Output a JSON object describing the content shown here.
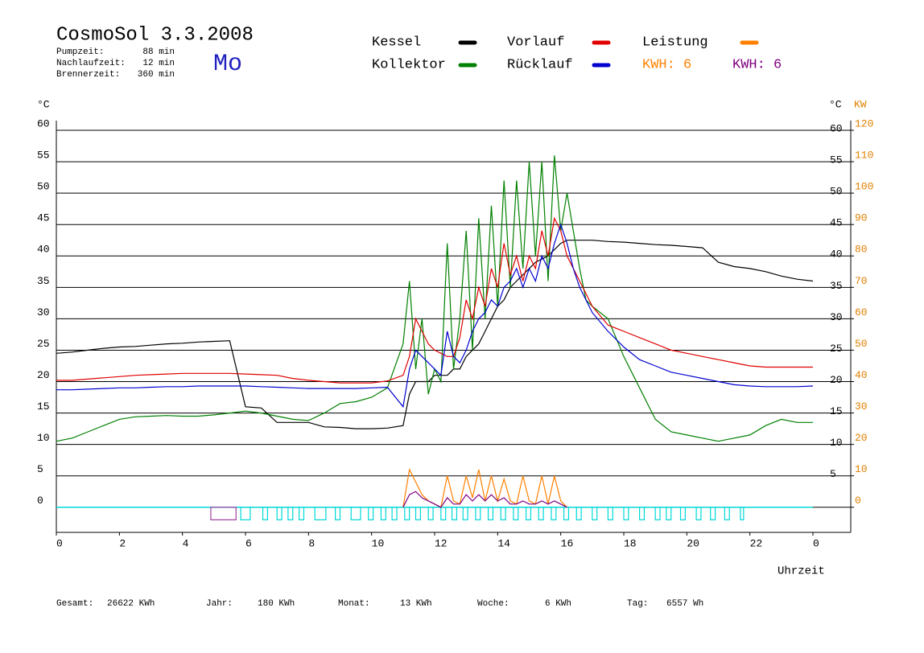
{
  "chart_data": {
    "type": "line",
    "title": "CosmoSol 3.3.2008",
    "weekday": "Mo",
    "stats": [
      [
        "Pumpzeit:",
        "88 min"
      ],
      [
        "Nachlaufzeit:",
        "12 min"
      ],
      [
        "Brennerzeit:",
        "360 min"
      ]
    ],
    "y_label": "°C",
    "y_right_label": "°C",
    "y2_label": "KW",
    "x_label": "Uhrzeit",
    "xlim": [
      0,
      25.2
    ],
    "xticks": [
      0,
      2,
      4,
      6,
      8,
      10,
      12,
      14,
      16,
      18,
      20,
      22,
      {
        "value": 24,
        "label": "0"
      }
    ],
    "ylim": [
      -4,
      60
    ],
    "yticks": [
      0,
      5,
      10,
      15,
      20,
      25,
      30,
      35,
      40,
      45,
      50,
      55,
      60
    ],
    "yticks_right": [
      5,
      10,
      15,
      20,
      25,
      30,
      35,
      40,
      45,
      50,
      55,
      60
    ],
    "y2lim": [
      -8,
      120
    ],
    "y2ticks": [
      0,
      10,
      20,
      30,
      40,
      50,
      60,
      70,
      80,
      90,
      100,
      110,
      120
    ],
    "y2_color": "#e08000",
    "grid": true,
    "series": [
      {
        "name": "Kessel",
        "color": "#000000",
        "x": [
          0,
          0.5,
          1,
          1.5,
          2,
          2.5,
          3,
          3.5,
          4,
          4.5,
          5,
          5.5,
          6,
          6.5,
          7,
          7.5,
          8,
          8.5,
          9,
          9.5,
          10,
          10.5,
          11,
          11.2,
          11.4,
          11.6,
          11.8,
          12,
          12.2,
          12.4,
          12.6,
          12.8,
          13,
          13.2,
          13.4,
          13.6,
          13.8,
          14,
          14.2,
          14.4,
          14.6,
          14.8,
          15,
          15.2,
          15.4,
          15.6,
          15.8,
          16,
          16.2,
          16.4,
          16.6,
          16.8,
          17,
          17.5,
          18,
          18.5,
          19,
          19.5,
          20,
          20.5,
          21,
          21.5,
          22,
          22.5,
          23,
          23.5,
          24
        ],
        "values": [
          24.5,
          24.7,
          25,
          25.3,
          25.5,
          25.6,
          25.8,
          26,
          26.1,
          26.3,
          26.4,
          26.5,
          16,
          15.8,
          13.5,
          13.5,
          13.5,
          12.8,
          12.7,
          12.5,
          12.5,
          12.6,
          13,
          18,
          20,
          20,
          20,
          21,
          21,
          21,
          22,
          22,
          24,
          25,
          26,
          28,
          30,
          32,
          33,
          35,
          36,
          37,
          38,
          39,
          39.5,
          40,
          41,
          42,
          42.5,
          42.5,
          42.5,
          42.5,
          42.5,
          42.3,
          42.2,
          42,
          41.8,
          41.7,
          41.5,
          41.3,
          39,
          38.3,
          38,
          37.5,
          36.8,
          36.3,
          36
        ]
      },
      {
        "name": "Kollektor",
        "color": "#008000",
        "x": [
          0,
          0.5,
          1,
          1.5,
          2,
          2.5,
          3,
          3.5,
          4,
          4.5,
          5,
          5.5,
          6,
          6.5,
          7,
          7.5,
          8,
          8.5,
          9,
          9.5,
          10,
          10.5,
          11,
          11.2,
          11.4,
          11.6,
          11.8,
          12,
          12.2,
          12.4,
          12.6,
          12.8,
          13,
          13.2,
          13.4,
          13.6,
          13.8,
          14,
          14.2,
          14.4,
          14.6,
          14.8,
          15,
          15.2,
          15.4,
          15.6,
          15.8,
          16,
          16.2,
          16.4,
          16.6,
          16.8,
          17,
          17.5,
          18,
          18.5,
          19,
          19.5,
          20,
          20.5,
          21,
          21.5,
          22,
          22.5,
          23,
          23.5,
          24
        ],
        "values": [
          10.5,
          11,
          12,
          13,
          14,
          14.4,
          14.5,
          14.6,
          14.5,
          14.5,
          14.7,
          15,
          15.3,
          15,
          14.5,
          14,
          13.8,
          15,
          16.5,
          16.8,
          17.5,
          19,
          26,
          36,
          22,
          30,
          18,
          22,
          20,
          42,
          22,
          30,
          44,
          25,
          46,
          30,
          48,
          32,
          52,
          35,
          52,
          38,
          55,
          40,
          55,
          36,
          56,
          44,
          50,
          44,
          38,
          33,
          32,
          30,
          24,
          19,
          14,
          12,
          11.5,
          11,
          10.5,
          11,
          11.5,
          13,
          14,
          13.5,
          13.5
        ]
      },
      {
        "name": "Vorlauf",
        "color": "#e00000",
        "x": [
          0,
          0.5,
          1,
          1.5,
          2,
          2.5,
          3,
          3.5,
          4,
          4.5,
          5,
          5.5,
          6,
          6.5,
          7,
          7.5,
          8,
          8.5,
          9,
          9.5,
          10,
          10.5,
          11,
          11.2,
          11.4,
          11.6,
          11.8,
          12,
          12.2,
          12.4,
          12.6,
          12.8,
          13,
          13.2,
          13.4,
          13.6,
          13.8,
          14,
          14.2,
          14.4,
          14.6,
          14.8,
          15,
          15.2,
          15.4,
          15.6,
          15.8,
          16,
          16.2,
          16.4,
          16.6,
          16.8,
          17,
          17.5,
          18,
          18.5,
          19,
          19.5,
          20,
          20.5,
          21,
          21.5,
          22,
          22.5,
          23,
          23.5,
          24
        ],
        "values": [
          20.2,
          20.2,
          20.4,
          20.6,
          20.8,
          21,
          21.1,
          21.2,
          21.3,
          21.3,
          21.3,
          21.3,
          21.2,
          21.1,
          21,
          20.5,
          20.2,
          20,
          19.8,
          19.8,
          19.8,
          20.1,
          21,
          24,
          30,
          28,
          26,
          25,
          24.5,
          24,
          24,
          27,
          33,
          30,
          35,
          32,
          38,
          35,
          42,
          37,
          40,
          36,
          40,
          38,
          44,
          40,
          46,
          44,
          40,
          38,
          36,
          34,
          32,
          29,
          28,
          27,
          26,
          25,
          24.5,
          24,
          23.5,
          23,
          22.5,
          22.3,
          22.3,
          22.3,
          22.3
        ]
      },
      {
        "name": "Rücklauf",
        "color": "#0000d0",
        "x": [
          0,
          0.5,
          1,
          1.5,
          2,
          2.5,
          3,
          3.5,
          4,
          4.5,
          5,
          5.5,
          6,
          6.5,
          7,
          7.5,
          8,
          8.5,
          9,
          9.5,
          10,
          10.5,
          11,
          11.2,
          11.4,
          11.6,
          11.8,
          12,
          12.2,
          12.4,
          12.6,
          12.8,
          13,
          13.2,
          13.4,
          13.6,
          13.8,
          14,
          14.2,
          14.4,
          14.6,
          14.8,
          15,
          15.2,
          15.4,
          15.6,
          15.8,
          16,
          16.2,
          16.4,
          16.6,
          16.8,
          17,
          17.5,
          18,
          18.5,
          19,
          19.5,
          20,
          20.5,
          21,
          21.5,
          22,
          22.5,
          23,
          23.5,
          24
        ],
        "values": [
          18.7,
          18.7,
          18.8,
          18.9,
          19,
          19,
          19.1,
          19.2,
          19.2,
          19.3,
          19.3,
          19.3,
          19.3,
          19.2,
          19.1,
          19,
          18.9,
          18.9,
          18.9,
          18.9,
          19,
          19.1,
          16,
          22,
          25,
          24,
          23,
          22,
          21,
          28,
          24,
          23,
          25,
          28,
          30,
          31,
          33,
          32,
          35,
          36,
          38,
          35,
          38,
          36,
          40,
          38,
          42,
          45,
          42,
          38,
          35,
          33,
          31,
          28,
          25.5,
          23.5,
          22.5,
          21.5,
          21,
          20.5,
          20,
          19.5,
          19.3,
          19.2,
          19.2,
          19.2,
          19.3
        ]
      },
      {
        "name": "Leistung",
        "color": "#ff8000",
        "axis": "y2",
        "kwh_label": "KWH: 6",
        "x": [
          11,
          11.2,
          11.4,
          11.6,
          11.8,
          12,
          12.2,
          12.4,
          12.6,
          12.8,
          13,
          13.2,
          13.4,
          13.6,
          13.8,
          14,
          14.2,
          14.4,
          14.6,
          14.8,
          15,
          15.2,
          15.4,
          15.6,
          15.8,
          16,
          16.2
        ],
        "values": [
          0,
          12,
          8,
          4,
          2,
          1,
          0,
          10,
          2,
          1,
          10,
          3,
          12,
          2,
          10,
          2,
          9,
          2,
          1,
          10,
          2,
          1,
          10,
          1,
          10,
          2,
          0
        ]
      },
      {
        "name": "KWH: 6",
        "color": "#800080",
        "axis": "y2",
        "x": [
          11,
          11.2,
          11.4,
          11.6,
          11.8,
          12,
          12.2,
          12.4,
          12.6,
          12.8,
          13,
          13.2,
          13.4,
          13.6,
          13.8,
          14,
          14.2,
          14.4,
          14.6,
          14.8,
          15,
          15.2,
          15.4,
          15.6,
          15.8,
          16,
          16.2
        ],
        "values": [
          0,
          4,
          5,
          3,
          2,
          1,
          0,
          3,
          1,
          1,
          4,
          2,
          4,
          2,
          4,
          2,
          3,
          1,
          1,
          2,
          1,
          1,
          2,
          1,
          2,
          1,
          0
        ]
      }
    ],
    "burner": {
      "color": "#a040a0",
      "runs": [
        [
          4.9,
          5.7
        ]
      ]
    },
    "pump": {
      "color": "#00d8d8",
      "runs": [
        [
          5.85,
          6.15
        ],
        [
          6.55,
          6.7
        ],
        [
          7.0,
          7.15
        ],
        [
          7.35,
          7.5
        ],
        [
          7.7,
          7.85
        ],
        [
          8.2,
          8.55
        ],
        [
          8.85,
          9.0
        ],
        [
          9.35,
          9.65
        ],
        [
          9.9,
          10.05
        ],
        [
          10.3,
          10.45
        ],
        [
          10.65,
          10.8
        ],
        [
          11.05,
          11.2
        ],
        [
          11.4,
          11.55
        ],
        [
          11.8,
          11.95
        ],
        [
          12.2,
          12.35
        ],
        [
          12.55,
          12.7
        ],
        [
          12.9,
          13.05
        ],
        [
          13.3,
          13.45
        ],
        [
          13.7,
          13.85
        ],
        [
          14.1,
          14.25
        ],
        [
          14.5,
          14.65
        ],
        [
          14.9,
          15.05
        ],
        [
          15.3,
          15.45
        ],
        [
          15.7,
          15.85
        ],
        [
          16.1,
          16.25
        ],
        [
          16.5,
          16.65
        ],
        [
          17.0,
          17.15
        ],
        [
          17.5,
          17.65
        ],
        [
          18.0,
          18.15
        ],
        [
          18.5,
          18.65
        ],
        [
          19.0,
          19.15
        ],
        [
          19.35,
          19.5
        ],
        [
          19.8,
          19.95
        ],
        [
          20.3,
          20.45
        ],
        [
          20.75,
          20.9
        ],
        [
          21.2,
          21.35
        ],
        [
          21.7,
          21.8
        ]
      ]
    },
    "totals": [
      [
        "Gesamt:",
        "26622 KWh"
      ],
      [
        "Jahr:",
        "180 KWh"
      ],
      [
        "Monat:",
        "13 KWh"
      ],
      [
        "Woche:",
        "6 KWh"
      ],
      [
        "Tag:",
        "6557 Wh"
      ]
    ]
  }
}
